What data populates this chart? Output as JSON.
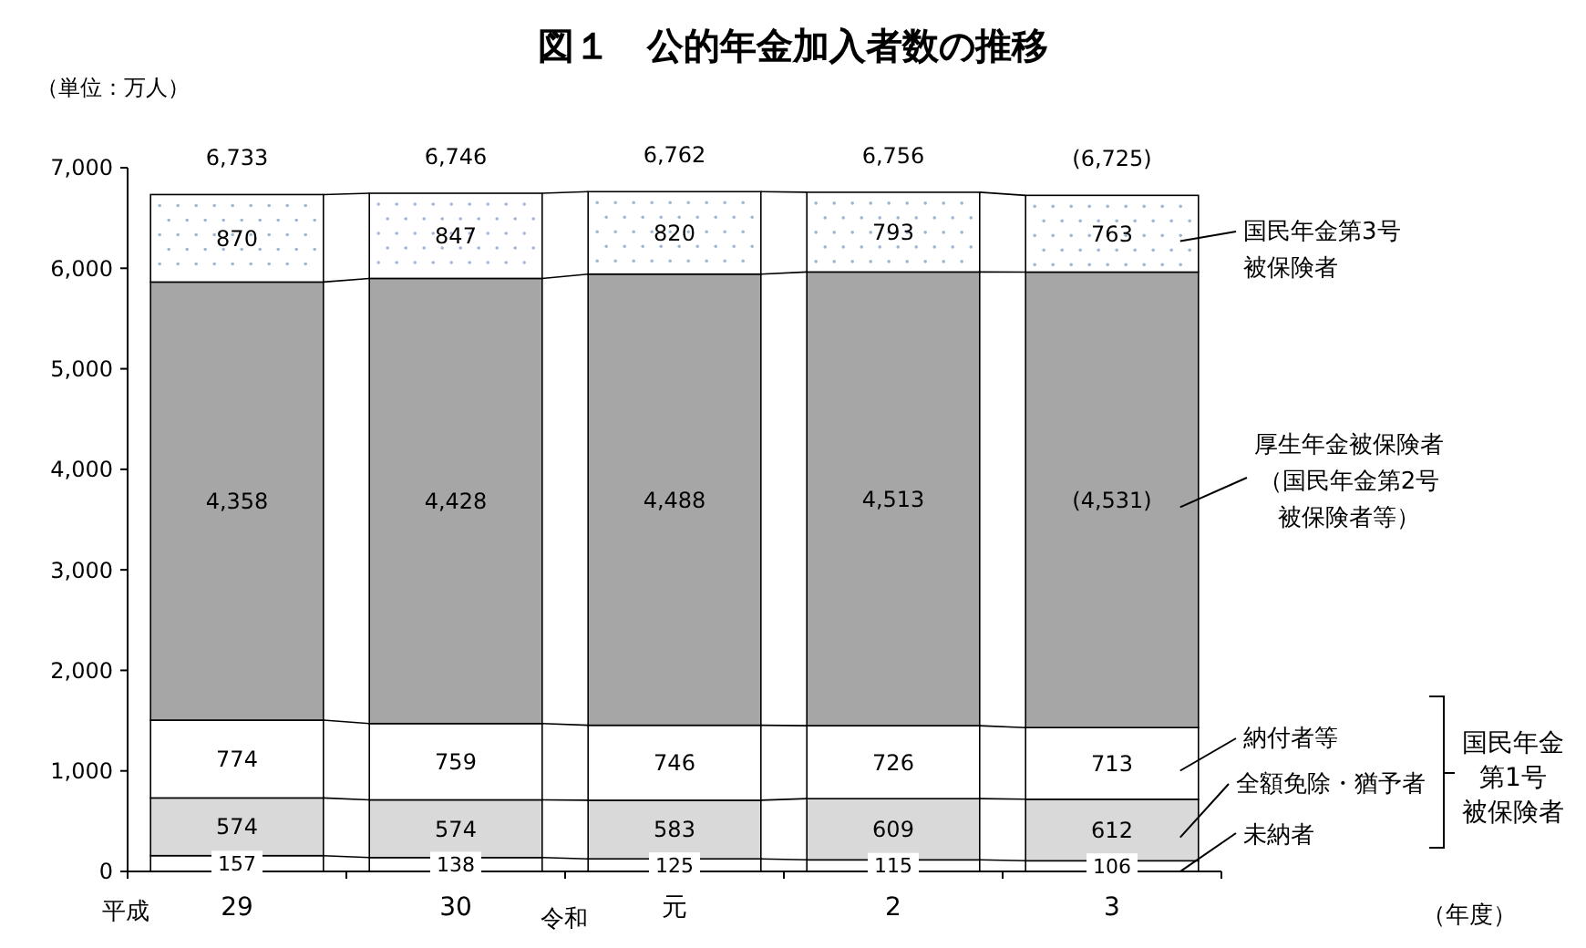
{
  "chart_data": {
    "type": "bar",
    "stacked": true,
    "title": "図１　公的年金加入者数の推移",
    "ylabel": "（単位：万人）",
    "categories": [
      "29",
      "30",
      "元",
      "2",
      "3"
    ],
    "series": [
      {
        "name": "未納者",
        "color": "#ffffff",
        "values": [
          157,
          138,
          125,
          115,
          106
        ],
        "value_labels": [
          "157",
          "138",
          "125",
          "115",
          "106"
        ]
      },
      {
        "name": "全額免除・猶予者",
        "color": "#d9d9d9",
        "values": [
          574,
          574,
          583,
          609,
          612
        ],
        "value_labels": [
          "574",
          "574",
          "583",
          "609",
          "612"
        ]
      },
      {
        "name": "納付者等",
        "color": "#ffffff",
        "values": [
          774,
          759,
          746,
          726,
          713
        ],
        "value_labels": [
          "774",
          "759",
          "746",
          "726",
          "713"
        ]
      },
      {
        "name": "厚生年金被保険者（国民年金第2号被保険者等）",
        "color": "#a6a6a6",
        "values": [
          4358,
          4428,
          4488,
          4513,
          4531
        ],
        "value_labels": [
          "4,358",
          "4,428",
          "4,488",
          "4,513",
          "(4,531)"
        ]
      },
      {
        "name": "国民年金第3号被保険者",
        "color": "#ffffff",
        "values": [
          870,
          847,
          820,
          793,
          763
        ],
        "value_labels": [
          "870",
          "847",
          "820",
          "793",
          "763"
        ]
      }
    ],
    "totals": [
      "6,733",
      "6,746",
      "6,762",
      "6,756",
      "(6,725)"
    ],
    "ylim": [
      0,
      7000
    ],
    "yticks": [
      0,
      {
        "value": 1000,
        "label": "1,000"
      },
      {
        "value": 2000,
        "label": "2,000"
      },
      {
        "value": 3000,
        "label": "3,000"
      },
      {
        "value": 4000,
        "label": "4,000"
      },
      {
        "value": 5000,
        "label": "5,000"
      },
      {
        "value": 6000,
        "label": "6,000"
      },
      {
        "value": 7000,
        "label": "7,000"
      }
    ],
    "grid": false,
    "legend": "right",
    "annotations": [
      "平成",
      "令和",
      "国民年金第1号被保険者",
      "（年度）"
    ]
  }
}
